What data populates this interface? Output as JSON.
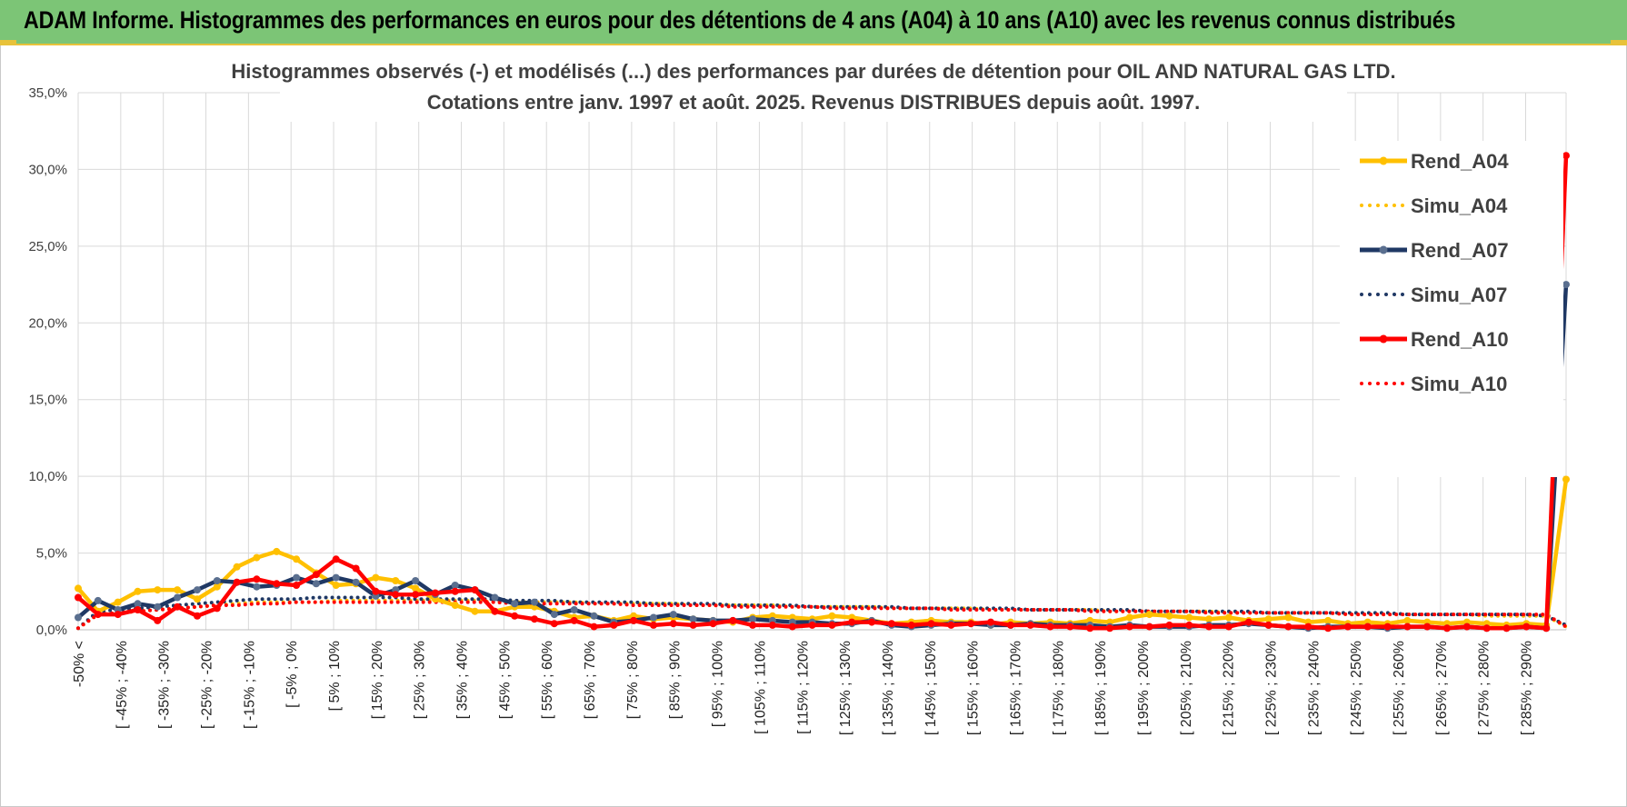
{
  "header": {
    "banner": "ADAM Informe. Histogrammes des performances en euros pour des détentions de 4 ans (A04) à 10 ans (A10) avec les revenus connus distribués"
  },
  "colors": {
    "banner_bg": "#7cc576",
    "accent": "#e8c23a",
    "a04": "#FFC000",
    "a07": "#1F3864",
    "a10": "#FF0000",
    "marker_a07": "#5a6f8f"
  },
  "chart_data": {
    "type": "line",
    "title": [
      "Histogrammes observés (-) et modélisés (...) des performances par durées de détention pour OIL AND NATURAL GAS LTD.",
      "Cotations entre janv. 1997 et août. 2025. Revenus DISTRIBUES depuis août. 1997."
    ],
    "xlabel": "",
    "ylabel": "",
    "ylim": [
      0,
      35
    ],
    "y_ticks": [
      "0,0%",
      "5,0%",
      "10,0%",
      "15,0%",
      "20,0%",
      "25,0%",
      "30,0%",
      "35,0%"
    ],
    "x_tick_labels": [
      "-50% <",
      "[ -45% ; -40%",
      "[ -35% ; -30%",
      "[ -25% ; -20%",
      "[ -15% ; -10%",
      "[ -5% ; 0%",
      "[ 5% ; 10%",
      "[ 15% ; 20%",
      "[ 25% ; 30%",
      "[ 35% ; 40%",
      "[ 45% ; 50%",
      "[ 55% ; 60%",
      "[ 65% ; 70%",
      "[ 75% ; 80%",
      "[ 85% ; 90%",
      "[ 95% ; 100%",
      "[ 105% ; 110%",
      "[ 115% ; 120%",
      "[ 125% ; 130%",
      "[ 135% ; 140%",
      "[ 145% ; 150%",
      "[ 155% ; 160%",
      "[ 165% ; 170%",
      "[ 175% ; 180%",
      "[ 185% ; 190%",
      "[ 195% ; 200%",
      "[ 205% ; 210%",
      "[ 215% ; 220%",
      "[ 225% ; 230%",
      "[ 235% ; 240%",
      "[ 245% ; 250%",
      "[ 255% ; 260%",
      "[ 265% ; 270%",
      "[ 275% ; 280%",
      "[ 285% ; 290%"
    ],
    "grid": true,
    "legend_position": "right",
    "series": [
      {
        "name": "Rend_A04",
        "style": "solid",
        "color": "#FFC000",
        "values": [
          2.7,
          1.2,
          1.8,
          2.5,
          2.6,
          2.6,
          2.0,
          2.8,
          4.1,
          4.7,
          5.1,
          4.6,
          3.7,
          2.9,
          3.0,
          3.4,
          3.2,
          2.7,
          2.0,
          1.6,
          1.2,
          1.2,
          1.5,
          1.5,
          1.2,
          0.8,
          0.9,
          0.6,
          0.9,
          0.7,
          0.8,
          0.7,
          0.6,
          0.5,
          0.8,
          0.9,
          0.8,
          0.7,
          0.9,
          0.8,
          0.6,
          0.4,
          0.5,
          0.6,
          0.5,
          0.5,
          0.3,
          0.5,
          0.4,
          0.5,
          0.4,
          0.6,
          0.5,
          0.8,
          1.0,
          0.9,
          0.8,
          0.7,
          0.8,
          0.6,
          0.7,
          0.8,
          0.5,
          0.6,
          0.4,
          0.5,
          0.4,
          0.6,
          0.5,
          0.4,
          0.5,
          0.4,
          0.3,
          0.4,
          0.3,
          9.8
        ]
      },
      {
        "name": "Simu_A04",
        "style": "dotted",
        "color": "#FFC000",
        "values": [
          0.1,
          1.0,
          1.1,
          1.2,
          1.3,
          1.4,
          1.5,
          1.6,
          1.7,
          1.8,
          1.8,
          1.8,
          1.8,
          1.9,
          1.9,
          1.9,
          1.9,
          1.9,
          1.9,
          1.9,
          1.9,
          1.8,
          1.8,
          1.8,
          1.8,
          1.8,
          1.7,
          1.7,
          1.7,
          1.7,
          1.7,
          1.6,
          1.6,
          1.6,
          1.6,
          1.6,
          1.5,
          1.5,
          1.5,
          1.5,
          1.5,
          1.4,
          1.4,
          1.4,
          1.4,
          1.4,
          1.3,
          1.3,
          1.3,
          1.3,
          1.3,
          1.3,
          1.2,
          1.2,
          1.2,
          1.2,
          1.2,
          1.2,
          1.1,
          1.1,
          1.1,
          1.1,
          1.1,
          1.1,
          1.0,
          1.0,
          1.0,
          1.0,
          1.0,
          1.0,
          1.0,
          0.9,
          0.9,
          0.9,
          0.9,
          0.2
        ]
      },
      {
        "name": "Rend_A07",
        "style": "solid",
        "color": "#1F3864",
        "values": [
          0.8,
          1.9,
          1.3,
          1.7,
          1.5,
          2.1,
          2.6,
          3.2,
          3.1,
          2.8,
          2.9,
          3.4,
          3.0,
          3.4,
          3.1,
          2.2,
          2.6,
          3.2,
          2.3,
          2.9,
          2.6,
          2.1,
          1.7,
          1.8,
          1.0,
          1.3,
          0.9,
          0.5,
          0.6,
          0.8,
          1.0,
          0.7,
          0.6,
          0.6,
          0.7,
          0.6,
          0.5,
          0.5,
          0.4,
          0.4,
          0.6,
          0.3,
          0.2,
          0.3,
          0.4,
          0.4,
          0.3,
          0.3,
          0.4,
          0.3,
          0.3,
          0.3,
          0.2,
          0.3,
          0.2,
          0.2,
          0.2,
          0.3,
          0.3,
          0.4,
          0.3,
          0.2,
          0.1,
          0.2,
          0.2,
          0.2,
          0.1,
          0.2,
          0.2,
          0.1,
          0.2,
          0.1,
          0.1,
          0.2,
          0.1,
          22.5
        ]
      },
      {
        "name": "Simu_A07",
        "style": "dotted",
        "color": "#1F3864",
        "values": [
          0.1,
          1.2,
          1.3,
          1.4,
          1.5,
          1.6,
          1.7,
          1.8,
          1.9,
          2.0,
          2.0,
          2.0,
          2.1,
          2.1,
          2.1,
          2.1,
          2.1,
          2.0,
          2.0,
          2.0,
          2.0,
          2.0,
          1.9,
          1.9,
          1.9,
          1.8,
          1.8,
          1.8,
          1.8,
          1.7,
          1.7,
          1.7,
          1.7,
          1.6,
          1.6,
          1.6,
          1.6,
          1.5,
          1.5,
          1.5,
          1.5,
          1.5,
          1.4,
          1.4,
          1.4,
          1.4,
          1.4,
          1.4,
          1.3,
          1.3,
          1.3,
          1.3,
          1.3,
          1.3,
          1.2,
          1.2,
          1.2,
          1.2,
          1.2,
          1.2,
          1.1,
          1.1,
          1.1,
          1.1,
          1.1,
          1.1,
          1.1,
          1.0,
          1.0,
          1.0,
          1.0,
          1.0,
          1.0,
          1.0,
          0.9,
          0.3
        ]
      },
      {
        "name": "Rend_A10",
        "style": "solid",
        "color": "#FF0000",
        "values": [
          2.1,
          1.0,
          1.0,
          1.3,
          0.6,
          1.5,
          0.9,
          1.4,
          3.1,
          3.3,
          3.0,
          2.9,
          3.6,
          4.6,
          4.0,
          2.5,
          2.3,
          2.3,
          2.4,
          2.5,
          2.6,
          1.2,
          0.9,
          0.7,
          0.4,
          0.6,
          0.2,
          0.3,
          0.6,
          0.3,
          0.4,
          0.3,
          0.4,
          0.6,
          0.3,
          0.3,
          0.2,
          0.3,
          0.3,
          0.5,
          0.5,
          0.4,
          0.3,
          0.4,
          0.3,
          0.4,
          0.5,
          0.3,
          0.3,
          0.2,
          0.2,
          0.1,
          0.1,
          0.2,
          0.2,
          0.3,
          0.3,
          0.2,
          0.2,
          0.5,
          0.3,
          0.2,
          0.2,
          0.1,
          0.2,
          0.2,
          0.2,
          0.2,
          0.2,
          0.1,
          0.2,
          0.1,
          0.1,
          0.2,
          0.1,
          30.9
        ]
      },
      {
        "name": "Simu_A10",
        "style": "dotted",
        "color": "#FF0000",
        "values": [
          0.1,
          1.0,
          1.1,
          1.2,
          1.3,
          1.4,
          1.5,
          1.6,
          1.6,
          1.7,
          1.7,
          1.8,
          1.8,
          1.8,
          1.8,
          1.8,
          1.8,
          1.8,
          1.8,
          1.8,
          1.8,
          1.8,
          1.7,
          1.7,
          1.7,
          1.7,
          1.7,
          1.7,
          1.6,
          1.6,
          1.6,
          1.6,
          1.6,
          1.5,
          1.5,
          1.5,
          1.5,
          1.5,
          1.4,
          1.4,
          1.4,
          1.4,
          1.4,
          1.4,
          1.3,
          1.3,
          1.3,
          1.3,
          1.3,
          1.3,
          1.3,
          1.2,
          1.2,
          1.2,
          1.2,
          1.2,
          1.2,
          1.1,
          1.1,
          1.1,
          1.1,
          1.1,
          1.1,
          1.1,
          1.0,
          1.0,
          1.0,
          1.0,
          1.0,
          1.0,
          1.0,
          1.0,
          1.0,
          1.0,
          1.0,
          0.2
        ]
      }
    ]
  }
}
